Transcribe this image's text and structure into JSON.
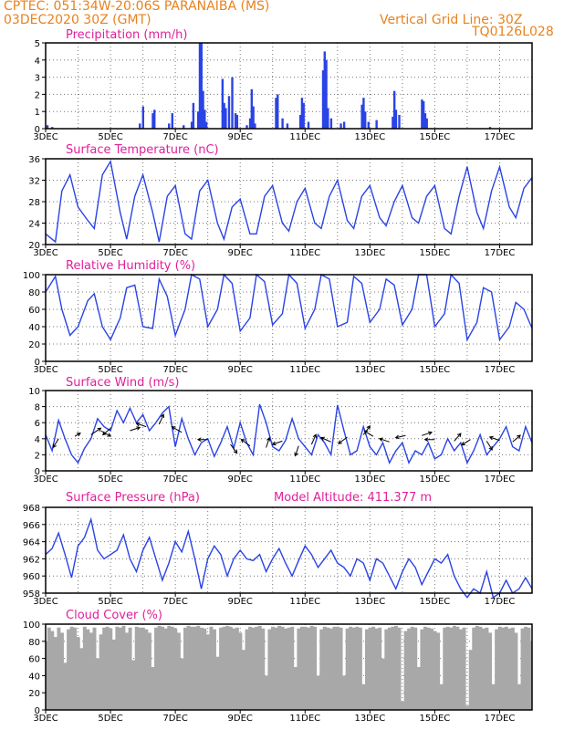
{
  "header": {
    "source_line": "CPTEC:   051:34W-20:06S   PARANAIBA (MS)",
    "date_line": "03DEC2020 30Z (GMT)",
    "grid_note": "Vertical Grid Line: 30Z",
    "code": "TQ0126L028"
  },
  "x_labels": [
    "3DEC",
    "5DEC",
    "7DEC",
    "9DEC",
    "11DEC",
    "13DEC",
    "15DEC",
    "17DEC"
  ],
  "colors": {
    "line": "#2a43e6",
    "header": "#e8821e",
    "title": "#e0209a",
    "cloud": "#a8a8a8"
  },
  "chart_data": [
    {
      "type": "bar",
      "title": "Precipitation (mm/h)",
      "ylim": [
        0,
        5
      ],
      "yticks": [
        0,
        1,
        2,
        3,
        4,
        5
      ],
      "x_start_day": 3,
      "x_end_day": 18,
      "bars": [
        [
          3.05,
          0.2
        ],
        [
          3.2,
          0.1
        ],
        [
          5.9,
          0.3
        ],
        [
          6.0,
          1.3
        ],
        [
          6.3,
          0.9
        ],
        [
          6.35,
          1.1
        ],
        [
          6.8,
          0.3
        ],
        [
          6.9,
          0.9
        ],
        [
          7.25,
          0.2
        ],
        [
          7.5,
          0.4
        ],
        [
          7.55,
          1.5
        ],
        [
          7.7,
          1.0
        ],
        [
          7.75,
          5.0
        ],
        [
          7.8,
          5.0
        ],
        [
          7.85,
          2.2
        ],
        [
          7.9,
          1.1
        ],
        [
          7.95,
          0.4
        ],
        [
          8.45,
          2.9
        ],
        [
          8.5,
          1.5
        ],
        [
          8.55,
          1.2
        ],
        [
          8.65,
          1.9
        ],
        [
          8.75,
          3.0
        ],
        [
          8.85,
          0.9
        ],
        [
          8.9,
          0.8
        ],
        [
          9.2,
          0.2
        ],
        [
          9.3,
          0.6
        ],
        [
          9.35,
          2.3
        ],
        [
          9.4,
          1.3
        ],
        [
          9.45,
          0.3
        ],
        [
          10.1,
          1.8
        ],
        [
          10.15,
          2.0
        ],
        [
          10.3,
          0.6
        ],
        [
          10.45,
          0.3
        ],
        [
          10.85,
          0.8
        ],
        [
          10.9,
          1.8
        ],
        [
          10.95,
          1.5
        ],
        [
          11.1,
          0.4
        ],
        [
          11.55,
          3.4
        ],
        [
          11.6,
          4.5
        ],
        [
          11.65,
          4.0
        ],
        [
          11.7,
          1.2
        ],
        [
          11.8,
          0.6
        ],
        [
          12.1,
          0.3
        ],
        [
          12.2,
          0.4
        ],
        [
          12.75,
          1.4
        ],
        [
          12.8,
          1.8
        ],
        [
          12.85,
          1.0
        ],
        [
          12.95,
          0.4
        ],
        [
          13.2,
          0.5
        ],
        [
          13.7,
          0.7
        ],
        [
          13.75,
          2.2
        ],
        [
          13.8,
          1.1
        ],
        [
          13.9,
          0.8
        ],
        [
          14.6,
          1.7
        ],
        [
          14.65,
          1.6
        ],
        [
          14.7,
          0.9
        ],
        [
          14.75,
          0.6
        ],
        [
          16.7,
          0.1
        ]
      ]
    },
    {
      "type": "line",
      "title": "Surface Temperature (nC)",
      "ylim": [
        20,
        36
      ],
      "yticks": [
        20,
        24,
        28,
        32,
        36
      ],
      "x_start_day": 3,
      "x_end_day": 18,
      "x": [
        3.0,
        3.3,
        3.5,
        3.75,
        4.0,
        4.3,
        4.5,
        4.75,
        5.0,
        5.3,
        5.5,
        5.75,
        6.0,
        6.3,
        6.5,
        6.75,
        7.0,
        7.3,
        7.5,
        7.75,
        8.0,
        8.3,
        8.5,
        8.75,
        9.0,
        9.3,
        9.5,
        9.75,
        10.0,
        10.3,
        10.5,
        10.75,
        11.0,
        11.3,
        11.5,
        11.75,
        12.0,
        12.3,
        12.5,
        12.75,
        13.0,
        13.3,
        13.5,
        13.75,
        14.0,
        14.3,
        14.5,
        14.75,
        15.0,
        15.3,
        15.5,
        15.75,
        16.0,
        16.3,
        16.5,
        16.75,
        17.0,
        17.3,
        17.5,
        17.75,
        18.0
      ],
      "values": [
        22,
        20.5,
        30,
        33,
        27,
        24.5,
        23,
        33,
        35.5,
        26,
        21,
        29,
        33,
        26,
        20.5,
        29,
        31,
        22,
        21,
        30,
        32,
        24,
        21,
        27,
        28.5,
        22,
        22,
        29,
        31,
        24,
        22.5,
        28,
        30.5,
        24,
        23,
        29,
        32,
        24.5,
        23,
        29,
        31,
        25,
        23.5,
        28,
        31,
        25,
        24,
        29,
        31,
        23,
        22,
        29,
        34.5,
        26,
        23,
        30,
        34.5,
        27,
        25,
        30.5,
        32.5
      ]
    },
    {
      "type": "line",
      "title": "Relative Humidity (%)",
      "ylim": [
        0,
        100
      ],
      "yticks": [
        0,
        20,
        40,
        60,
        80,
        100
      ],
      "x_start_day": 3,
      "x_end_day": 18,
      "x": [
        3.0,
        3.3,
        3.5,
        3.75,
        4.0,
        4.3,
        4.5,
        4.75,
        5.0,
        5.3,
        5.5,
        5.75,
        6.0,
        6.3,
        6.5,
        6.75,
        7.0,
        7.3,
        7.5,
        7.75,
        8.0,
        8.3,
        8.5,
        8.75,
        9.0,
        9.3,
        9.5,
        9.75,
        10.0,
        10.3,
        10.5,
        10.75,
        11.0,
        11.3,
        11.5,
        11.75,
        12.0,
        12.3,
        12.5,
        12.75,
        13.0,
        13.3,
        13.5,
        13.75,
        14.0,
        14.3,
        14.5,
        14.75,
        15.0,
        15.3,
        15.5,
        15.75,
        16.0,
        16.3,
        16.5,
        16.75,
        17.0,
        17.3,
        17.5,
        17.75,
        18.0
      ],
      "values": [
        80,
        98,
        60,
        30,
        40,
        70,
        78,
        40,
        25,
        50,
        85,
        88,
        40,
        38,
        95,
        75,
        30,
        60,
        100,
        95,
        40,
        60,
        100,
        90,
        35,
        50,
        100,
        92,
        42,
        55,
        100,
        90,
        38,
        60,
        100,
        95,
        40,
        45,
        98,
        90,
        45,
        60,
        95,
        88,
        42,
        60,
        100,
        100,
        40,
        55,
        100,
        90,
        25,
        45,
        85,
        80,
        25,
        40,
        68,
        60,
        38
      ]
    },
    {
      "type": "line",
      "title": "Surface Wind (m/s)",
      "ylim": [
        0,
        10
      ],
      "yticks": [
        0,
        2,
        4,
        6,
        8,
        10
      ],
      "x_start_day": 3,
      "x_end_day": 18,
      "x": [
        3.0,
        3.2,
        3.4,
        3.6,
        3.8,
        4.0,
        4.2,
        4.4,
        4.6,
        4.8,
        5.0,
        5.2,
        5.4,
        5.6,
        5.8,
        6.0,
        6.2,
        6.4,
        6.6,
        6.8,
        7.0,
        7.2,
        7.4,
        7.6,
        7.8,
        8.0,
        8.2,
        8.4,
        8.6,
        8.8,
        9.0,
        9.2,
        9.4,
        9.6,
        9.8,
        10.0,
        10.2,
        10.4,
        10.6,
        10.8,
        11.0,
        11.2,
        11.4,
        11.6,
        11.8,
        12.0,
        12.2,
        12.4,
        12.6,
        12.8,
        13.0,
        13.2,
        13.4,
        13.6,
        13.8,
        14.0,
        14.2,
        14.4,
        14.6,
        14.8,
        15.0,
        15.2,
        15.4,
        15.6,
        15.8,
        16.0,
        16.2,
        16.4,
        16.6,
        16.8,
        17.0,
        17.2,
        17.4,
        17.6,
        17.8,
        18.0
      ],
      "values": [
        4.5,
        2.5,
        6.3,
        4.0,
        2.0,
        1.0,
        2.8,
        4.0,
        6.5,
        5.5,
        5.0,
        7.5,
        6.0,
        7.8,
        6.0,
        7.0,
        5.0,
        6.0,
        7.2,
        8.0,
        3.0,
        6.5,
        4.0,
        2.0,
        3.5,
        4.0,
        1.8,
        3.5,
        5.5,
        2.8,
        6.0,
        3.5,
        2.0,
        8.3,
        6.0,
        3.0,
        2.5,
        3.8,
        6.5,
        4.0,
        3.0,
        2.0,
        4.5,
        3.5,
        2.0,
        8.2,
        5.0,
        2.0,
        2.5,
        5.5,
        3.0,
        2.0,
        3.5,
        1.0,
        2.5,
        3.5,
        1.0,
        2.5,
        2.0,
        3.5,
        1.5,
        2.0,
        4.0,
        2.5,
        3.5,
        1.0,
        2.5,
        4.5,
        2.0,
        3.0,
        4.0,
        5.5,
        3.0,
        2.5,
        5.5,
        3.5
      ],
      "arrows": [
        [
          3.4,
          4.0,
          -0.5,
          -0.8
        ],
        [
          3.9,
          4.3,
          0.5,
          0.3
        ],
        [
          4.4,
          4.5,
          0.9,
          0.6
        ],
        [
          4.7,
          5.0,
          0.9,
          -0.5
        ],
        [
          5.0,
          5.3,
          -0.7,
          -0.6
        ],
        [
          5.6,
          5.0,
          0.9,
          0.3
        ],
        [
          6.1,
          5.5,
          -0.9,
          0.3
        ],
        [
          6.5,
          5.8,
          0.4,
          0.9
        ],
        [
          7.2,
          4.8,
          -0.9,
          0.5
        ],
        [
          8.0,
          3.9,
          -0.9,
          0.0
        ],
        [
          8.7,
          3.3,
          0.6,
          -0.8
        ],
        [
          9.3,
          3.1,
          -0.8,
          0.6
        ],
        [
          9.8,
          2.9,
          0.3,
          0.9
        ],
        [
          10.3,
          3.7,
          -0.9,
          -0.3
        ],
        [
          10.8,
          3.1,
          -0.3,
          -0.9
        ],
        [
          11.2,
          3.3,
          0.4,
          0.9
        ],
        [
          11.8,
          3.6,
          -0.9,
          0.4
        ],
        [
          12.3,
          4.2,
          -0.8,
          -0.6
        ],
        [
          12.8,
          4.5,
          0.6,
          0.8
        ],
        [
          13.1,
          4.3,
          -0.8,
          0.5
        ],
        [
          13.6,
          3.6,
          -0.9,
          0.3
        ],
        [
          14.1,
          4.4,
          -0.9,
          -0.2
        ],
        [
          14.6,
          4.4,
          0.9,
          0.3
        ],
        [
          15.0,
          3.9,
          -0.9,
          0.0
        ],
        [
          15.6,
          3.7,
          0.6,
          0.7
        ],
        [
          16.1,
          3.9,
          -0.8,
          -0.5
        ],
        [
          16.6,
          3.7,
          0.5,
          -0.8
        ],
        [
          17.0,
          3.8,
          -0.9,
          0.3
        ],
        [
          17.4,
          3.6,
          0.7,
          0.6
        ]
      ]
    },
    {
      "type": "line",
      "title": "Surface Pressure (hPa)",
      "ylim": [
        958,
        968
      ],
      "yticks": [
        958,
        960,
        962,
        964,
        966,
        968
      ],
      "x_start_day": 3,
      "x_end_day": 18,
      "x": [
        3.0,
        3.2,
        3.4,
        3.6,
        3.8,
        4.0,
        4.2,
        4.4,
        4.6,
        4.8,
        5.0,
        5.2,
        5.4,
        5.6,
        5.8,
        6.0,
        6.2,
        6.4,
        6.6,
        6.8,
        7.0,
        7.2,
        7.4,
        7.6,
        7.8,
        8.0,
        8.2,
        8.4,
        8.6,
        8.8,
        9.0,
        9.2,
        9.4,
        9.6,
        9.8,
        10.0,
        10.2,
        10.4,
        10.6,
        10.8,
        11.0,
        11.2,
        11.4,
        11.6,
        11.8,
        12.0,
        12.2,
        12.4,
        12.6,
        12.8,
        13.0,
        13.2,
        13.4,
        13.6,
        13.8,
        14.0,
        14.2,
        14.4,
        14.6,
        14.8,
        15.0,
        15.2,
        15.4,
        15.6,
        15.8,
        16.0,
        16.2,
        16.4,
        16.6,
        16.8,
        17.0,
        17.2,
        17.4,
        17.6,
        17.8,
        18.0
      ],
      "values": [
        962.5,
        963.2,
        965.0,
        962.5,
        959.8,
        963.5,
        964.5,
        966.6,
        963.0,
        962.0,
        962.5,
        963.0,
        964.8,
        962.0,
        960.5,
        963.0,
        964.5,
        962.0,
        959.5,
        961.5,
        964.0,
        962.8,
        965.2,
        962.0,
        958.5,
        962.0,
        963.5,
        962.5,
        960.0,
        962.0,
        963.0,
        962.0,
        961.8,
        962.5,
        960.5,
        962.0,
        963.2,
        961.5,
        960.0,
        961.8,
        963.5,
        962.5,
        961.0,
        962.0,
        963.0,
        961.5,
        961.0,
        960.0,
        962.0,
        961.5,
        959.5,
        962.0,
        961.5,
        960.0,
        958.5,
        960.5,
        962.0,
        961.0,
        959.0,
        960.5,
        962.0,
        961.5,
        962.5,
        960.0,
        958.5,
        957.5,
        958.5,
        958.0,
        960.5,
        957.5,
        958.0,
        959.5,
        958.0,
        958.5,
        959.8,
        958.5
      ]
    },
    {
      "type": "area",
      "title": "Cloud Cover (%)",
      "ylim": [
        0,
        100
      ],
      "yticks": [
        0,
        20,
        40,
        60,
        80,
        100
      ],
      "x_start_day": 3,
      "x_end_day": 18,
      "x": [
        3.0,
        3.1,
        3.2,
        3.3,
        3.4,
        3.5,
        3.6,
        3.7,
        3.8,
        3.9,
        4.0,
        4.1,
        4.2,
        4.3,
        4.4,
        4.5,
        4.6,
        4.7,
        4.8,
        4.9,
        5.0,
        5.1,
        5.2,
        5.3,
        5.4,
        5.5,
        5.6,
        5.7,
        5.8,
        5.9,
        6.0,
        6.1,
        6.2,
        6.3,
        6.4,
        6.5,
        6.6,
        6.7,
        6.8,
        6.9,
        7.0,
        7.1,
        7.2,
        7.3,
        7.4,
        7.5,
        7.6,
        7.7,
        7.8,
        7.9,
        8.0,
        8.1,
        8.2,
        8.3,
        8.4,
        8.5,
        8.6,
        8.7,
        8.8,
        8.9,
        9.0,
        9.1,
        9.2,
        9.3,
        9.4,
        9.5,
        9.6,
        9.7,
        9.8,
        9.9,
        10.0,
        10.1,
        10.2,
        10.3,
        10.4,
        10.5,
        10.6,
        10.7,
        10.8,
        10.9,
        11.0,
        11.1,
        11.2,
        11.3,
        11.4,
        11.5,
        11.6,
        11.7,
        11.8,
        11.9,
        12.0,
        12.1,
        12.2,
        12.3,
        12.4,
        12.5,
        12.6,
        12.7,
        12.8,
        12.9,
        13.0,
        13.1,
        13.2,
        13.3,
        13.4,
        13.5,
        13.6,
        13.7,
        13.8,
        13.9,
        14.0,
        14.1,
        14.2,
        14.3,
        14.4,
        14.5,
        14.6,
        14.7,
        14.8,
        14.9,
        15.0,
        15.1,
        15.2,
        15.3,
        15.4,
        15.5,
        15.6,
        15.7,
        15.8,
        15.9,
        16.0,
        16.1,
        16.2,
        16.3,
        16.4,
        16.5,
        16.6,
        16.7,
        16.8,
        16.9,
        17.0,
        17.1,
        17.2,
        17.3,
        17.4,
        17.5,
        17.6,
        17.7,
        17.8,
        17.9,
        18.0
      ],
      "values": [
        80,
        96,
        92,
        85,
        96,
        90,
        55,
        94,
        97,
        96,
        85,
        72,
        97,
        94,
        90,
        96,
        60,
        88,
        96,
        97,
        95,
        82,
        97,
        96,
        98,
        90,
        96,
        58,
        97,
        96,
        96,
        94,
        90,
        50,
        96,
        98,
        97,
        95,
        98,
        97,
        95,
        90,
        60,
        96,
        98,
        97,
        97,
        98,
        96,
        95,
        88,
        97,
        94,
        62,
        96,
        97,
        98,
        97,
        95,
        96,
        90,
        70,
        94,
        97,
        96,
        97,
        98,
        95,
        40,
        94,
        97,
        96,
        98,
        97,
        95,
        96,
        97,
        50,
        95,
        97,
        97,
        96,
        98,
        97,
        40,
        94,
        97,
        96,
        95,
        97,
        97,
        96,
        40,
        95,
        97,
        96,
        97,
        96,
        30,
        94,
        96,
        97,
        95,
        96,
        60,
        94,
        96,
        97,
        98,
        96,
        10,
        92,
        95,
        97,
        96,
        50,
        94,
        97,
        96,
        95,
        92,
        90,
        30,
        96,
        97,
        96,
        98,
        97,
        94,
        96,
        5,
        70,
        96,
        98,
        97,
        95,
        96,
        90,
        30,
        94,
        97,
        96,
        97,
        95,
        96,
        90,
        30,
        95,
        97,
        96,
        80
      ]
    }
  ],
  "panels_extra": {
    "altitude": "Model Altitude: 411.377 m"
  }
}
